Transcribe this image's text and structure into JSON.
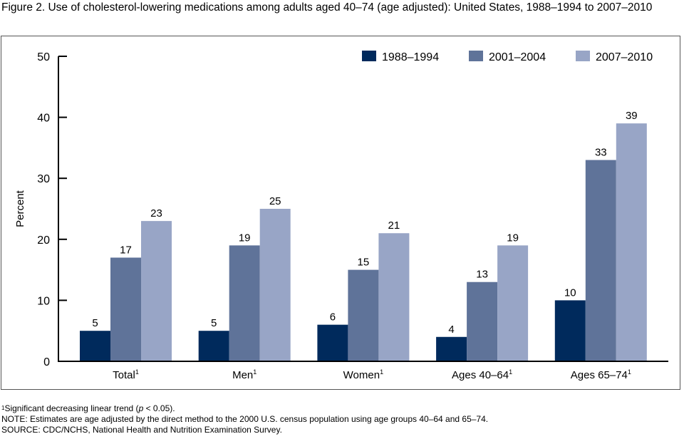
{
  "title": "Figure 2. Use of cholesterol-lowering medications among adults aged 40–74 (age adjusted): United States, 1988–1994 to 2007–2010",
  "footnotes": {
    "trend_mark": "1",
    "trend_pre": "Significant decreasing linear trend (",
    "trend_p": "p",
    "trend_post": " < 0.05).",
    "note": "NOTE: Estimates are age adjusted by the direct method to the 2000 U.S. census population using age groups 40–64 and 65–74.",
    "source": "SOURCE: CDC/NCHS, National Health and Nutrition Examination Survey."
  },
  "chart_data": {
    "type": "bar",
    "categories": [
      "Total",
      "Men",
      "Women",
      "Ages 40–64",
      "Ages 65–74"
    ],
    "category_superscript": "1",
    "ylabel": "Percent",
    "xlabel": "",
    "ylim": [
      0,
      50
    ],
    "yticks": [
      0,
      10,
      20,
      30,
      40,
      50
    ],
    "grid": false,
    "legend_position": "top-right",
    "series": [
      {
        "name": "1988–1994",
        "color": "#002a5c",
        "values": [
          5,
          5,
          6,
          4,
          10
        ]
      },
      {
        "name": "2001–2004",
        "color": "#5f7399",
        "values": [
          17,
          19,
          15,
          13,
          33
        ]
      },
      {
        "name": "2007–2010",
        "color": "#98a5c6",
        "values": [
          23,
          25,
          21,
          19,
          39
        ]
      }
    ]
  }
}
